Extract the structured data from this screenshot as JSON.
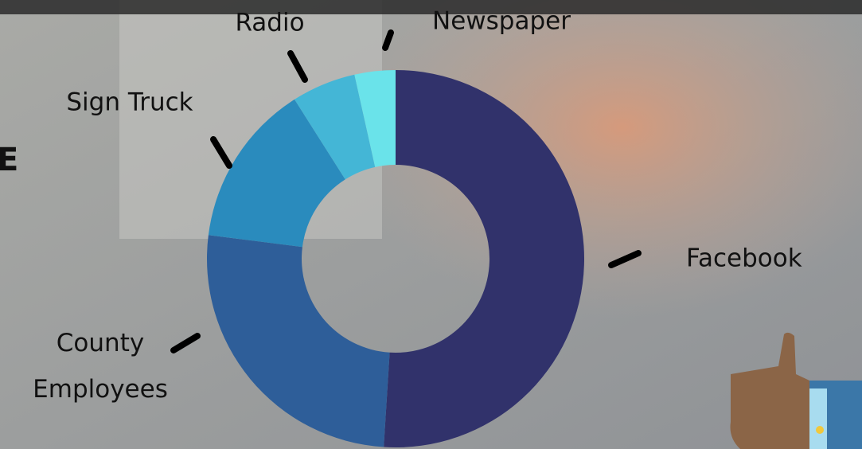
{
  "cropped_text": "E",
  "chart_data": {
    "type": "donut",
    "categories": [
      "Facebook",
      "County Employees",
      "Sign Truck",
      "Radio",
      "Newspaper"
    ],
    "values": [
      51,
      26,
      14,
      5.5,
      3.5
    ],
    "colors": [
      "#31326b",
      "#2e5e99",
      "#2a8bbd",
      "#44b6d6",
      "#6ae3ea"
    ]
  }
}
